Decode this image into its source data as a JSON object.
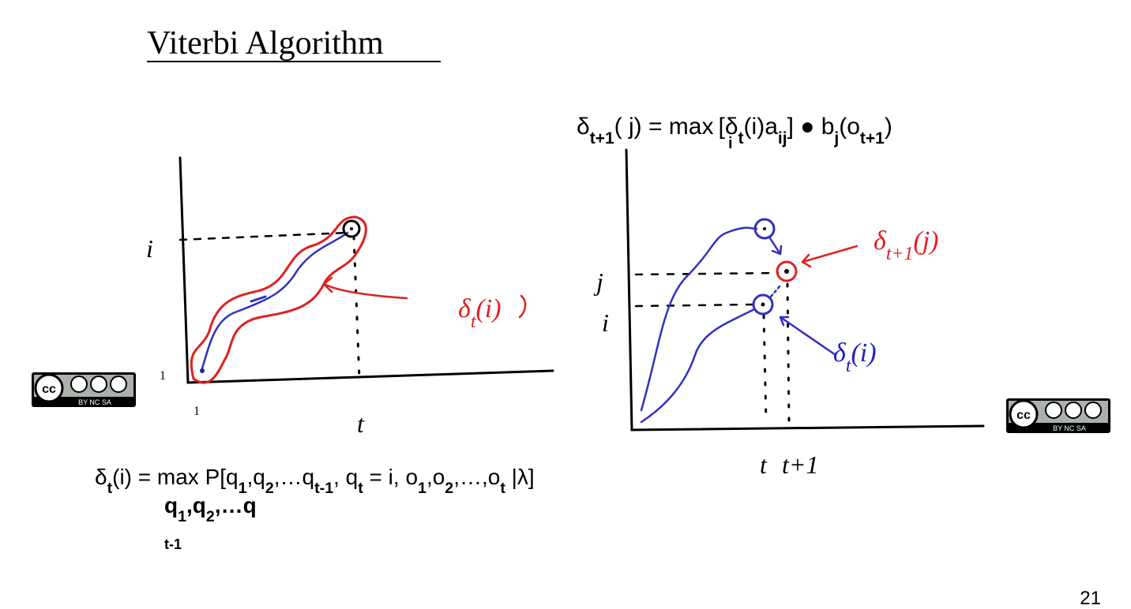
{
  "title": "Viterbi Algorithm",
  "right_formula": [
    "δ",
    "t+1",
    "( j) = max",
    "[δ",
    "t",
    "(i)a",
    "ij",
    "] ● b",
    "j",
    "(o",
    "t+1",
    ")"
  ],
  "right_formula_under": "i",
  "left_graph": {
    "y_labels": [
      "i",
      "1"
    ],
    "x_labels": [
      "1",
      "t"
    ],
    "annotation": [
      "δ",
      "t",
      "(i)"
    ]
  },
  "right_graph": {
    "y_labels": [
      "j",
      "i"
    ],
    "x_labels": [
      "t",
      "t+1"
    ],
    "annotation_top": [
      "δ",
      "t+1",
      "(j)"
    ],
    "annotation_bottom": [
      "δ",
      "t",
      "(i)"
    ]
  },
  "bottom_formula": [
    "δ",
    "t",
    "(i) = max  P[q",
    "1",
    ",q",
    "2",
    ",…q",
    "t-1",
    ", q",
    "t",
    " = i, o",
    "1",
    ",o",
    "2",
    ",…,o",
    "t",
    " |λ]"
  ],
  "bottom_under": [
    "q",
    "1",
    ",q",
    "2",
    ",…q"
  ],
  "bottom_under_sub": "t-1",
  "license": "BY NC SA",
  "page_number": "21"
}
